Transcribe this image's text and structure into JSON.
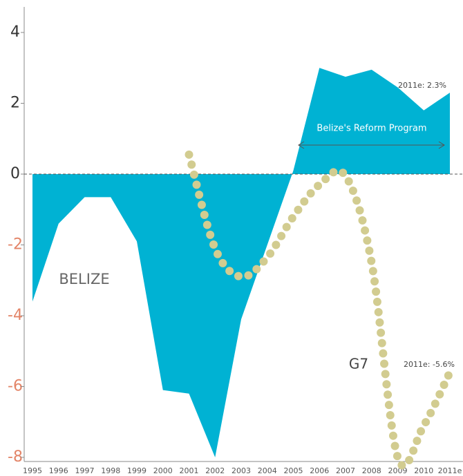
{
  "chart_data": {
    "type": "area",
    "categories": [
      "1995",
      "1996",
      "1997",
      "1998",
      "1999",
      "2000",
      "2001",
      "2002",
      "2003",
      "2004",
      "2005",
      "2006",
      "2007",
      "2008",
      "2009",
      "2010",
      "2011e"
    ],
    "series": [
      {
        "name": "BELIZE",
        "color": "#00b2d3",
        "values": [
          -3.6,
          -1.4,
          -0.65,
          -0.65,
          -1.9,
          -6.1,
          -6.2,
          -8,
          -4.1,
          -2,
          0.1,
          3.0,
          2.75,
          2.95,
          2.45,
          1.8,
          2.3
        ]
      },
      {
        "name": "G7",
        "color": "#d2cc90",
        "values": [
          null,
          null,
          null,
          null,
          null,
          null,
          0.55,
          -2.1,
          -2.9,
          -2.35,
          -1.2,
          -0.3,
          -0.05,
          -2.5,
          -8,
          -7.1,
          -5.6
        ]
      }
    ],
    "ylim": [
      -8,
      4.7
    ],
    "yticks": [
      -8,
      -6,
      -4,
      -2,
      0,
      2,
      4
    ],
    "tick_color": "#333333",
    "negative_tick_color": "#e38467",
    "annotations": [
      "2011e: 2.3%",
      "2011e: -5.6%",
      "Belize's Reform Program"
    ]
  }
}
